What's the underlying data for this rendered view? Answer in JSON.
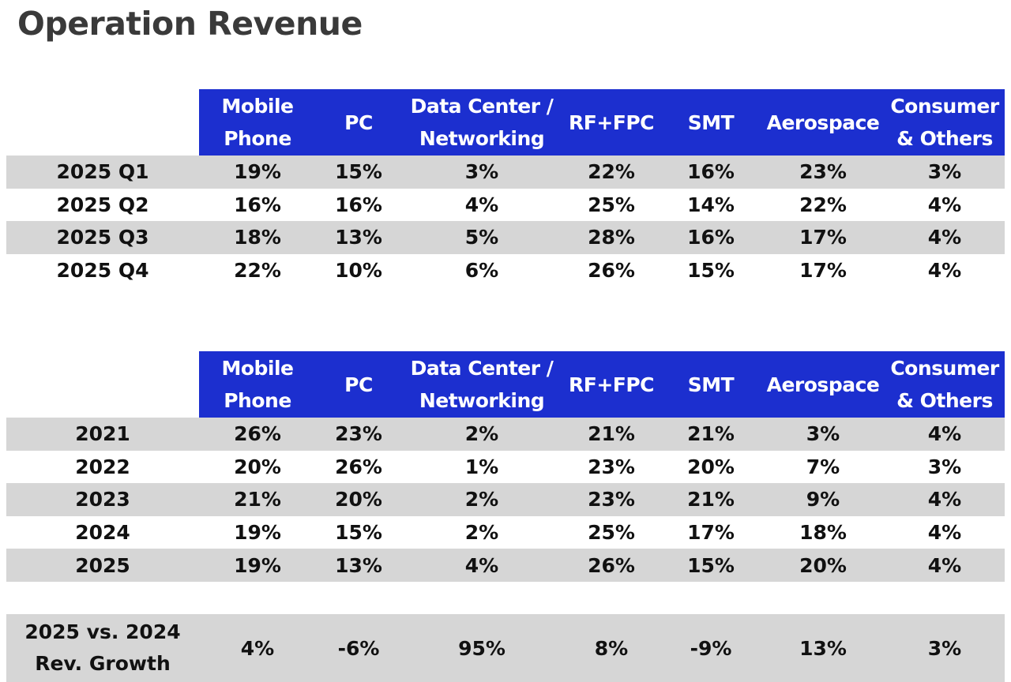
{
  "title": "Operation Revenue",
  "header": {
    "columns": [
      {
        "line1": "Mobile",
        "line2": "Phone"
      },
      {
        "line1": "PC",
        "line2": ""
      },
      {
        "line1": "Data Center /",
        "line2": "Networking"
      },
      {
        "line1": "RF+FPC",
        "line2": ""
      },
      {
        "line1": "SMT",
        "line2": ""
      },
      {
        "line1": "Aerospace",
        "line2": ""
      },
      {
        "line1": "Consumer",
        "line2": "& Others"
      }
    ]
  },
  "quarterly": {
    "rows": [
      {
        "label": "2025 Q1",
        "values": [
          "19%",
          "15%",
          "3%",
          "22%",
          "16%",
          "23%",
          "3%"
        ]
      },
      {
        "label": "2025 Q2",
        "values": [
          "16%",
          "16%",
          "4%",
          "25%",
          "14%",
          "22%",
          "4%"
        ]
      },
      {
        "label": "2025 Q3",
        "values": [
          "18%",
          "13%",
          "5%",
          "28%",
          "16%",
          "17%",
          "4%"
        ]
      },
      {
        "label": "2025 Q4",
        "values": [
          "22%",
          "10%",
          "6%",
          "26%",
          "15%",
          "17%",
          "4%"
        ]
      }
    ]
  },
  "annual": {
    "rows": [
      {
        "label": "2021",
        "values": [
          "26%",
          "23%",
          "2%",
          "21%",
          "21%",
          "3%",
          "4%"
        ]
      },
      {
        "label": "2022",
        "values": [
          "20%",
          "26%",
          "1%",
          "23%",
          "20%",
          "7%",
          "3%"
        ]
      },
      {
        "label": "2023",
        "values": [
          "21%",
          "20%",
          "2%",
          "23%",
          "21%",
          "9%",
          "4%"
        ]
      },
      {
        "label": "2024",
        "values": [
          "19%",
          "15%",
          "2%",
          "25%",
          "17%",
          "18%",
          "4%"
        ]
      },
      {
        "label": "2025",
        "values": [
          "19%",
          "13%",
          "4%",
          "26%",
          "15%",
          "20%",
          "4%"
        ]
      }
    ]
  },
  "growth": {
    "label_line1": "2025 vs. 2024",
    "label_line2": "Rev. Growth",
    "values": [
      "4%",
      "-6%",
      "95%",
      "8%",
      "-9%",
      "13%",
      "3%"
    ]
  }
}
